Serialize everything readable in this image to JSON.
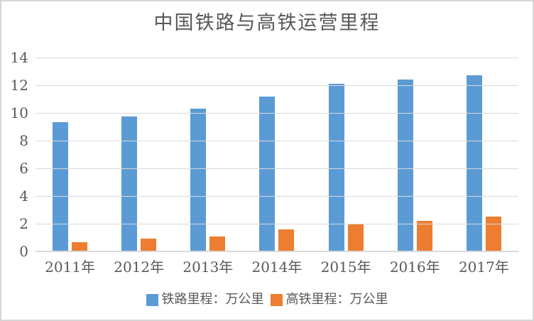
{
  "chart": {
    "title": "中国铁路与高铁运营里程"
  },
  "chart_data": {
    "type": "bar",
    "title": "中国铁路与高铁运营里程",
    "categories": [
      "2011年",
      "2012年",
      "2013年",
      "2014年",
      "2015年",
      "2016年",
      "2017年"
    ],
    "series": [
      {
        "name": "铁路里程：万公里",
        "color": "#5b9bd5",
        "values": [
          9.32,
          9.76,
          10.31,
          11.18,
          12.1,
          12.4,
          12.7
        ]
      },
      {
        "name": "高铁里程：万公里",
        "color": "#ed7d31",
        "values": [
          0.66,
          0.94,
          1.1,
          1.6,
          1.98,
          2.2,
          2.5
        ]
      }
    ],
    "xlabel": "",
    "ylabel": "",
    "ylim": [
      0,
      14
    ],
    "yticks": [
      0,
      2,
      4,
      6,
      8,
      10,
      12,
      14
    ],
    "grid": true,
    "legend_position": "bottom"
  },
  "colors": {
    "text": "#595959",
    "gridline": "#d9d9d9",
    "axis_line": "#d9d9d9",
    "frame_border": "#d6d6d6",
    "background": "#ffffff"
  }
}
